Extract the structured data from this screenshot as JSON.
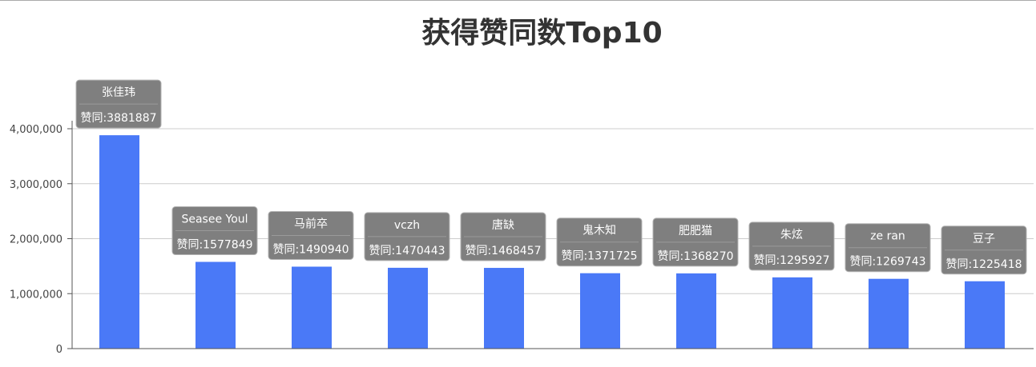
{
  "chart_data": {
    "type": "bar",
    "title": "获得赞同数Top10",
    "categories": [
      "张佳玮",
      "Seasee Youl",
      "马前卒",
      "vczh",
      "唐缺",
      "鬼木知",
      "肥肥猫",
      "朱炫",
      "ze ran",
      "豆子"
    ],
    "values": [
      3881887,
      1577849,
      1490940,
      1470443,
      1468457,
      1371725,
      1368270,
      1295927,
      1269743,
      1225418
    ],
    "data_labels": [
      "赞同:3881887",
      "赞同:1577849",
      "赞同:1490940",
      "赞同:1470443",
      "赞同:1468457",
      "赞同:1371725",
      "赞同:1368270",
      "赞同:1295927",
      "赞同:1269743",
      "赞同:1225418"
    ],
    "y_ticks": [
      0,
      1000000,
      2000000,
      3000000,
      4000000
    ],
    "y_tick_labels": [
      "0",
      "1,000,000",
      "2,000,000",
      "3,000,000",
      "4,000,000"
    ],
    "ylim": [
      0,
      4000000
    ],
    "grid": true,
    "legend": "none",
    "bar_color": "#4a79f7",
    "tooltip_color": "#7f7f7f"
  }
}
